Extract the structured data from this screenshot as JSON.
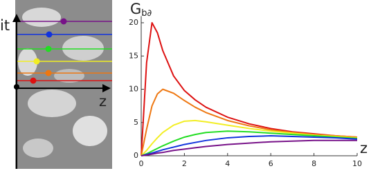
{
  "chart_data": {
    "type": "line",
    "y_label": "G",
    "y_label_subscript": "b∂",
    "x_label": "z",
    "panel_axis_labels": {
      "vertical": "it",
      "horizontal": "z"
    },
    "x": [
      0,
      0.25,
      0.5,
      0.75,
      1,
      1.5,
      2,
      2.5,
      3,
      4,
      5,
      6,
      7,
      8,
      9,
      10
    ],
    "series": [
      {
        "color": "#dd1111",
        "values": [
          0,
          14,
          20,
          18.5,
          15.8,
          12,
          9.8,
          8.4,
          7.3,
          5.8,
          4.8,
          4.1,
          3.6,
          3.3,
          3.0,
          2.8
        ]
      },
      {
        "color": "#ee7711",
        "values": [
          0,
          4,
          7.5,
          9.3,
          10,
          9.4,
          8.3,
          7.3,
          6.5,
          5.3,
          4.5,
          3.9,
          3.5,
          3.2,
          3.0,
          2.8
        ]
      },
      {
        "color": "#f2ee22",
        "values": [
          0,
          0.8,
          1.8,
          2.7,
          3.5,
          4.6,
          5.2,
          5.3,
          5.1,
          4.6,
          4.1,
          3.7,
          3.4,
          3.1,
          2.9,
          2.7
        ]
      },
      {
        "color": "#22dd22",
        "values": [
          0,
          0.3,
          0.7,
          1.1,
          1.5,
          2.2,
          2.8,
          3.2,
          3.5,
          3.7,
          3.6,
          3.4,
          3.2,
          3.0,
          2.8,
          2.6
        ]
      },
      {
        "color": "#1133dd",
        "values": [
          0,
          0.2,
          0.4,
          0.65,
          0.9,
          1.3,
          1.7,
          2.0,
          2.3,
          2.7,
          2.9,
          3.0,
          2.9,
          2.8,
          2.7,
          2.5
        ]
      },
      {
        "color": "#771188",
        "values": [
          0,
          0.1,
          0.25,
          0.4,
          0.5,
          0.8,
          1.0,
          1.2,
          1.4,
          1.7,
          1.9,
          2.1,
          2.2,
          2.3,
          2.3,
          2.3
        ]
      }
    ],
    "xlim": [
      0,
      10
    ],
    "xticks": [
      0,
      2,
      4,
      6,
      8,
      10
    ],
    "ylim": [
      0,
      21
    ],
    "yticks": [
      0,
      5,
      10,
      15,
      20
    ]
  }
}
